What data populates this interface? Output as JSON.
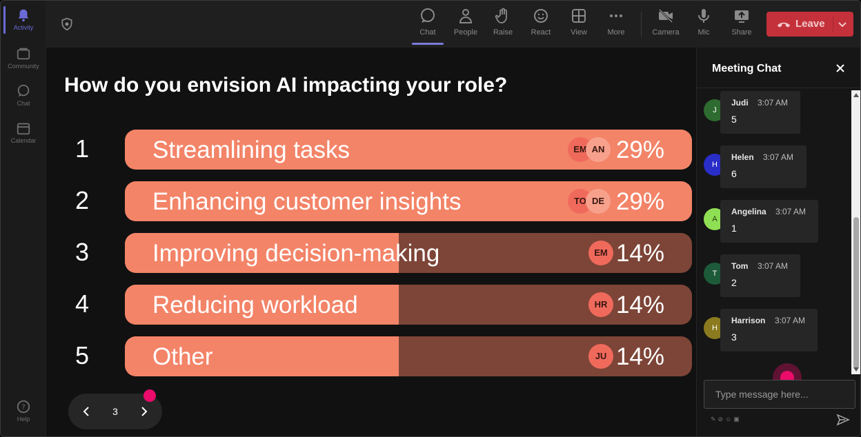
{
  "rail": {
    "items": [
      {
        "label": "Activity",
        "icon": "bell-icon"
      },
      {
        "label": "Community",
        "icon": "community-icon"
      },
      {
        "label": "Chat",
        "icon": "chat-icon"
      },
      {
        "label": "Calendar",
        "icon": "calendar-icon"
      }
    ],
    "help_label": "Help"
  },
  "toolbar": {
    "items": [
      {
        "label": "Chat",
        "icon": "chat-icon"
      },
      {
        "label": "People",
        "icon": "people-icon"
      },
      {
        "label": "Raise",
        "icon": "hand-icon"
      },
      {
        "label": "React",
        "icon": "smiley-icon"
      },
      {
        "label": "View",
        "icon": "grid-icon"
      },
      {
        "label": "More",
        "icon": "more-icon"
      },
      {
        "label": "Camera",
        "icon": "camera-off-icon"
      },
      {
        "label": "Mic",
        "icon": "mic-icon"
      },
      {
        "label": "Share",
        "icon": "share-icon"
      }
    ],
    "active": "Chat",
    "leave_label": "Leave",
    "leave_color": "#c4313b"
  },
  "poll": {
    "question": "How do you envision AI impacting your role?",
    "options": [
      {
        "number": "1",
        "label": "Streamlining tasks",
        "percent_text": "29%",
        "percent": 29,
        "avatars": [
          "EM",
          "AN"
        ]
      },
      {
        "number": "2",
        "label": "Enhancing customer insights",
        "percent_text": "29%",
        "percent": 29,
        "avatars": [
          "TO",
          "DE"
        ]
      },
      {
        "number": "3",
        "label": "Improving decision-making",
        "percent_text": "14%",
        "percent": 14,
        "avatars": [
          "EM"
        ]
      },
      {
        "number": "4",
        "label": "Reducing workload",
        "percent_text": "14%",
        "percent": 14,
        "avatars": [
          "HR"
        ]
      },
      {
        "number": "5",
        "label": "Other",
        "percent_text": "14%",
        "percent": 14,
        "avatars": [
          "JU"
        ]
      }
    ],
    "bar_fill_color": "#f38468",
    "bar_track_color": "#7d4537",
    "page": "3"
  },
  "chat": {
    "title": "Meeting Chat",
    "messages": [
      {
        "initial": "J",
        "name": "Judi",
        "time": "3:07 AM",
        "text": "5",
        "avatar_color": "#2e6b30"
      },
      {
        "initial": "H",
        "name": "Helen",
        "time": "3:07 AM",
        "text": "6",
        "avatar_color": "#2a2ec8"
      },
      {
        "initial": "A",
        "name": "Angelina",
        "time": "3:07 AM",
        "text": "1",
        "avatar_color": "#8fdf54"
      },
      {
        "initial": "T",
        "name": "Tom",
        "time": "3:07 AM",
        "text": "2",
        "avatar_color": "#1d5a3a"
      },
      {
        "initial": "H",
        "name": "Harrison",
        "time": "3:07 AM",
        "text": "3",
        "avatar_color": "#8b7a1e"
      }
    ],
    "input_placeholder": "Type message here..."
  },
  "accent_dot_color": "#ec0b6a"
}
